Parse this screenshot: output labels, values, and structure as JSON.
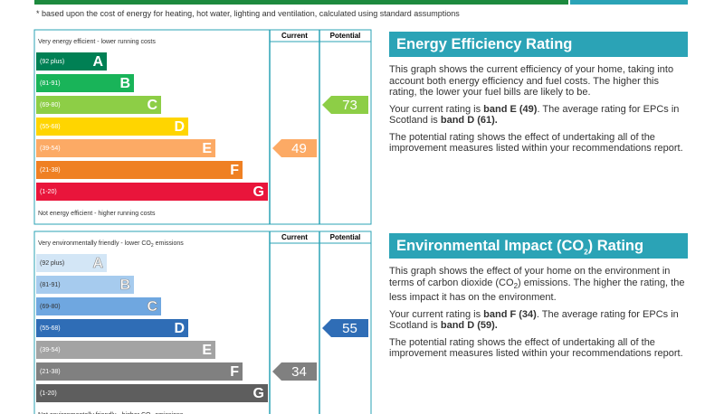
{
  "footnote": "* based upon the cost of energy for heating, hot water, lighting and ventilation, calculated using standard assumptions",
  "sections": [
    {
      "title": [
        {
          "text": "Energy Efficiency Rating"
        }
      ],
      "column_headers": [
        "Current",
        "Potential"
      ],
      "top_label": [
        {
          "text": "Very energy efficient - lower running costs"
        }
      ],
      "bottom_label": [
        {
          "text": "Not energy efficient - higher running costs"
        }
      ],
      "bands": [
        {
          "range": "(92 plus)",
          "letter": "A",
          "color": "#008054"
        },
        {
          "range": "(81-91)",
          "letter": "B",
          "color": "#19b459"
        },
        {
          "range": "(69-80)",
          "letter": "C",
          "color": "#8dce46"
        },
        {
          "range": "(55-68)",
          "letter": "D",
          "color": "#ffd500"
        },
        {
          "range": "(39-54)",
          "letter": "E",
          "color": "#fcaa65"
        },
        {
          "range": "(21-38)",
          "letter": "F",
          "color": "#ef8023"
        },
        {
          "range": "(1-20)",
          "letter": "G",
          "color": "#e9153b"
        }
      ],
      "current": 49,
      "potential": 73,
      "paragraphs": [
        [
          {
            "text": "This graph shows the current efficiency of your home, taking into account both energy efficiency and fuel costs. The higher this rating, the lower your fuel bills are likely to be."
          }
        ],
        [
          {
            "text": "Your current rating is "
          },
          {
            "text": "band E (49)",
            "bold": true
          },
          {
            "text": ". The average rating for EPCs in Scotland is "
          },
          {
            "text": "band D (61).",
            "bold": true
          }
        ],
        [
          {
            "text": "The potential rating shows the effect of undertaking all of the improvement measures listed within your recommendations report."
          }
        ]
      ]
    },
    {
      "title": [
        {
          "text": "Environmental Impact (CO"
        },
        {
          "text": "2",
          "sub": true
        },
        {
          "text": ") Rating"
        }
      ],
      "column_headers": [
        "Current",
        "Potential"
      ],
      "top_label": [
        {
          "text": "Very environmentally friendly - lower CO"
        },
        {
          "text": "2",
          "sub": true
        },
        {
          "text": " emissions"
        }
      ],
      "bottom_label": [
        {
          "text": "Not environmentally friendly - higher CO"
        },
        {
          "text": "2",
          "sub": true
        },
        {
          "text": " emissions"
        }
      ],
      "bands": [
        {
          "range": "(92 plus)",
          "letter": "A",
          "color": "#d3e6f6"
        },
        {
          "range": "(81-91)",
          "letter": "B",
          "color": "#a6cbee"
        },
        {
          "range": "(69-80)",
          "letter": "C",
          "color": "#6fa7e0"
        },
        {
          "range": "(55-68)",
          "letter": "D",
          "color": "#2f6db6"
        },
        {
          "range": "(39-54)",
          "letter": "E",
          "color": "#a3a3a3"
        },
        {
          "range": "(21-38)",
          "letter": "F",
          "color": "#808080"
        },
        {
          "range": "(1-20)",
          "letter": "G",
          "color": "#5e5e5e"
        }
      ],
      "current": 34,
      "potential": 55,
      "paragraphs": [
        [
          {
            "text": "This graph shows the effect of your home on the environment in terms of carbon dioxide (CO"
          },
          {
            "text": "2",
            "sub": true
          },
          {
            "text": ") emissions. The higher the rating, the less impact it has on the environment."
          }
        ],
        [
          {
            "text": "Your current rating is "
          },
          {
            "text": "band F (34)",
            "bold": true
          },
          {
            "text": ". The average rating for EPCs in Scotland is "
          },
          {
            "text": "band D (59).",
            "bold": true
          }
        ],
        [
          {
            "text": "The potential rating shows the effect of undertaking all of the improvement measures listed within your recommendations report."
          }
        ]
      ]
    }
  ]
}
